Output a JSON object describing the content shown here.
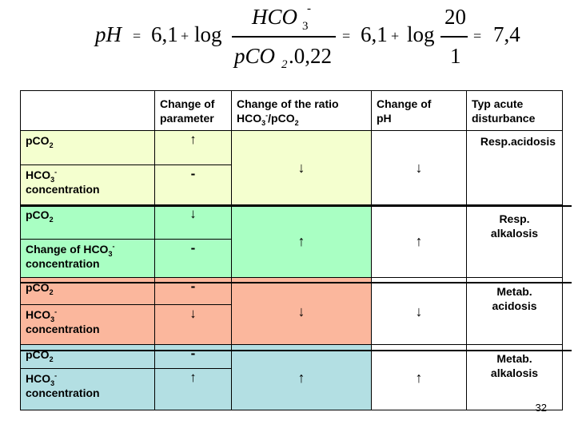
{
  "formula": {
    "ph": "pH",
    "eq": "=",
    "base": "6,1",
    "plus": "+",
    "log": "log",
    "num_main": "HCO",
    "num_sub": "3",
    "num_sup": "-",
    "den_main": "pCO",
    "den_sub": "2",
    "den_tail": ".0,22",
    "eq2": "=",
    "base2": "6,1",
    "plus2": "+",
    "log2": "log",
    "num2": "20",
    "den2": "1",
    "eq3": "=",
    "result": "7,4"
  },
  "table": {
    "headers": {
      "change_param": [
        "Change of",
        "parameter"
      ],
      "ratio_l1": "Change of the ratio",
      "ratio_l2_a": "HCO",
      "ratio_l2_sub": "3",
      "ratio_l2_sup": "-",
      "ratio_l2_b": "/pCO",
      "ratio_l2_sub2": "2",
      "ph": [
        "Change of",
        "pH"
      ],
      "disturbance": [
        "Typ acute",
        "disturbance"
      ]
    },
    "groups": [
      {
        "color": "#f4ffcf",
        "row1": {
          "label": "pCO",
          "label_sub": "2",
          "change": "↑"
        },
        "row2": {
          "label": "HCO",
          "label_sub": "3",
          "label_sup": "-",
          "label_l2": "concentration",
          "change": "-"
        },
        "ratio": "↓",
        "ph": "↓",
        "disturbance": [
          "Resp.acidosis"
        ]
      },
      {
        "color": "#a9ffc3",
        "row1": {
          "label": "pCO",
          "label_sub": "2",
          "change": "↓"
        },
        "row2": {
          "label": "Change of HCO",
          "label_sub": "3",
          "label_sup": "-",
          "label_l2": "concentration",
          "change": "-"
        },
        "ratio": "↑",
        "ph": "↑",
        "disturbance": [
          "Resp.",
          "alkalosis"
        ]
      },
      {
        "color": "#fbb79d",
        "row1": {
          "label": "pCO",
          "label_sub": "2",
          "change": "-"
        },
        "row2": {
          "label": "HCO",
          "label_sub": "3",
          "label_sup": "-",
          "label_l2": "concentration",
          "change": "↓"
        },
        "ratio": "↓",
        "ph": "↓",
        "disturbance": [
          "Metab.",
          "acidosis"
        ]
      },
      {
        "color": "#b3dfe3",
        "row1": {
          "label": "pCO",
          "label_sub": "2",
          "change": "-"
        },
        "row2": {
          "label": "HCO",
          "label_sub": "3",
          "label_sup": "-",
          "label_l2": "concentration",
          "change": "↑"
        },
        "ratio": "↑",
        "ph": "↑",
        "disturbance": [
          "Metab.",
          "alkalosis"
        ]
      }
    ]
  },
  "page_number": "32"
}
